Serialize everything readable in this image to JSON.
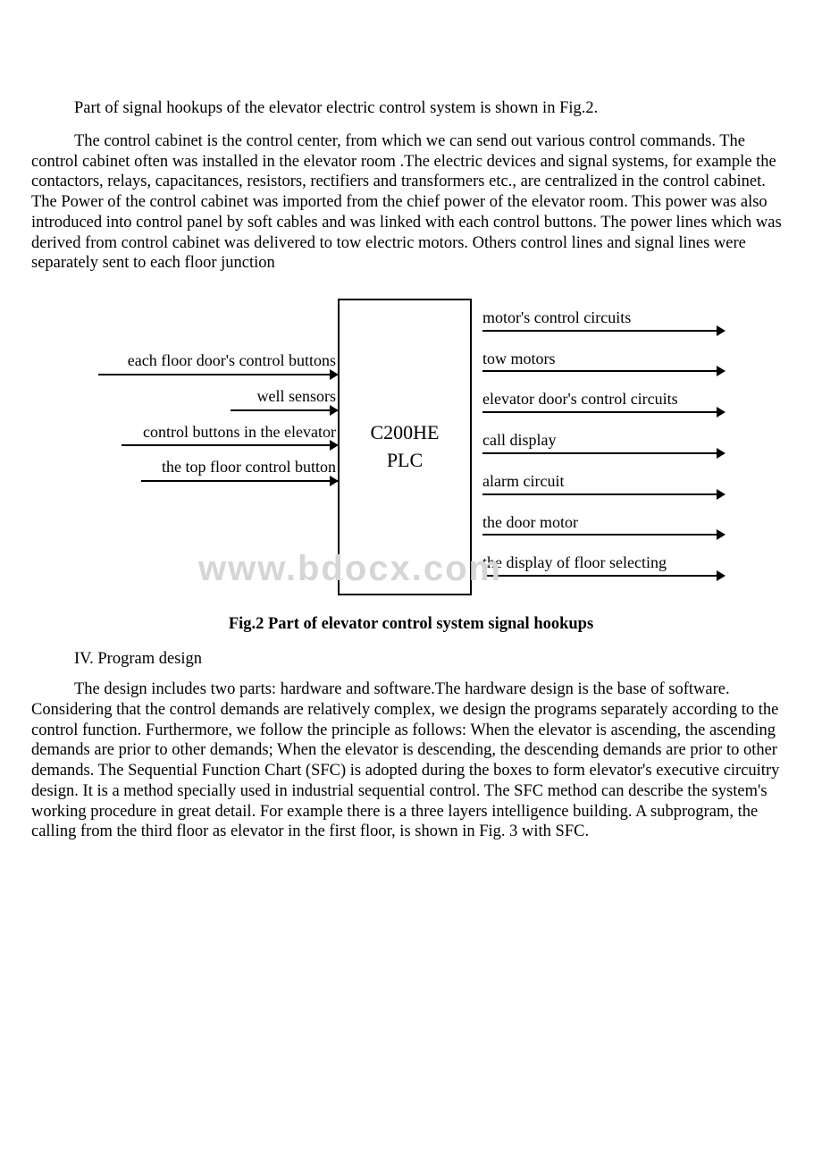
{
  "paragraphs": {
    "p1": "Part of signal hookups of the elevator electric control system is shown in Fig.2.",
    "p2": "The control cabinet is the control center, from which we can send out various control commands. The control cabinet often was installed in the elevator room .The electric devices and signal systems, for example the contactors, relays, capacitances, resistors, rectifiers and transformers etc., are centralized in the control cabinet. The Power of the control cabinet was imported from the chief power of the elevator room. This power was also introduced into control panel by soft cables and was linked with each control buttons. The power lines which was derived from control cabinet was delivered to tow electric motors. Others control lines and signal lines were separately sent to each floor junction",
    "p3": "The design includes two parts: hardware and software.The hardware design is the base of software. Considering that the control demands are relatively complex, we design the programs separately according to the control function. Furthermore, we follow the principle as follows: When the elevator is ascending, the ascending demands are prior to other demands; When the elevator is descending, the descending demands are prior to other demands. The Sequential Function Chart (SFC) is adopted during the boxes to form elevator's executive circuitry design. It is a method specially used in industrial sequential control. The SFC method can describe the system's working procedure in great detail. For example there is a three layers intelligence building. A subprogram, the calling from the third floor as elevator in the first floor, is shown in Fig. 3 with SFC."
  },
  "section": "IV. Program design",
  "diagram": {
    "center": {
      "line1": "C200HE",
      "line2": "PLC"
    },
    "inputs": [
      {
        "label": "each floor door's control buttons",
        "line_width": 268
      },
      {
        "label": "well   sensors",
        "line_width": 120
      },
      {
        "label": "control buttons in the elevator",
        "line_width": 242
      },
      {
        "label": "the top floor control button",
        "line_width": 220
      }
    ],
    "outputs": [
      {
        "label": "motor's control circuits"
      },
      {
        "label": "tow  motors"
      },
      {
        "label": "elevator  door's control circuits"
      },
      {
        "label": "call display"
      },
      {
        "label": "alarm circuit"
      },
      {
        "label": "the door  motor"
      },
      {
        "label": "the display of floor selecting"
      }
    ],
    "caption": "Fig.2   Part of elevator control system signal hookups"
  },
  "watermark": "www.bdocx.com",
  "colors": {
    "text": "#000000",
    "background": "#ffffff",
    "watermark": "#d6d6d6",
    "line": "#000000"
  }
}
